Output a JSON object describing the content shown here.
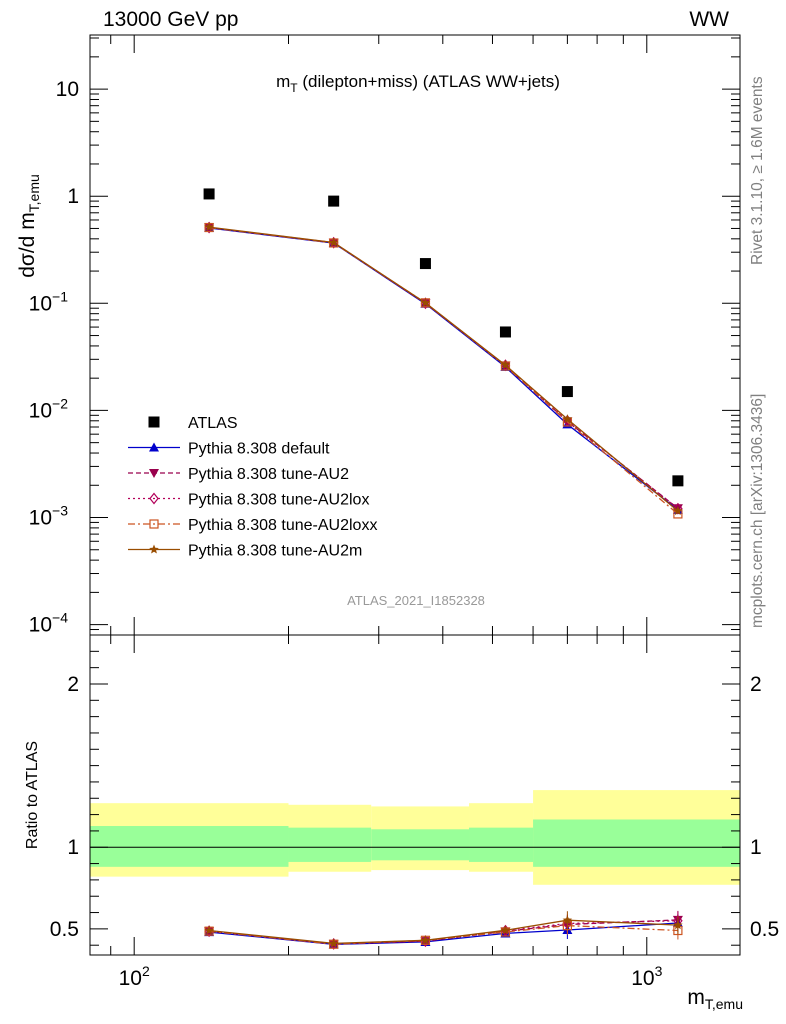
{
  "header": {
    "left": "13000 GeV pp",
    "right": "WW"
  },
  "side": {
    "rivet": "Rivet 3.1.10, ≥ 1.6M events",
    "mcplots": "mcplots.cern.ch [arXiv:1306.3436]"
  },
  "colors": {
    "atlas": "#000000",
    "default": "#0000cc",
    "au2": "#99004d",
    "au2lox": "#b3005a",
    "au2loxx": "#cc5522",
    "au2m": "#994d00",
    "band_inner": "#99ff99",
    "band_outer": "#ffff99"
  },
  "chart_data": [
    {
      "type": "line",
      "title": "m_T (dilepton+miss) (ATLAS WW+jets)",
      "title_main": "m",
      "title_sub": "T",
      "title_rest": " (dilepton+miss) (ATLAS WW+jets)",
      "ylabel_main": "dσ/d m",
      "ylabel_sub": "T,emu",
      "analysis_label": "ATLAS_2021_I1852328",
      "xscale": "log",
      "yscale": "log",
      "xlim": [
        82,
        1520
      ],
      "ylim": [
        8e-05,
        32
      ],
      "x_tick_labels": [
        {
          "base": "10",
          "exp": "2",
          "value": 100
        },
        {
          "base": "10",
          "exp": "3",
          "value": 1000
        }
      ],
      "y_tick_labels": [
        {
          "base": "10",
          "exp": "",
          "value": 10
        },
        {
          "base": "1",
          "exp": "",
          "value": 1
        },
        {
          "base": "10",
          "exp": "−1",
          "value": 0.1
        },
        {
          "base": "10",
          "exp": "−2",
          "value": 0.01
        },
        {
          "base": "10",
          "exp": "−3",
          "value": 0.001
        },
        {
          "base": "10",
          "exp": "−4",
          "value": 0.0001
        }
      ],
      "legend_position": "lower-left",
      "x": [
        140,
        245,
        370,
        530,
        700,
        1150
      ],
      "bin_edges": [
        82,
        200,
        290,
        450,
        600,
        1520
      ],
      "series": [
        {
          "name": "ATLAS",
          "key": "atlas",
          "marker": "square",
          "values": [
            1.05,
            0.9,
            0.235,
            0.054,
            0.015,
            0.0022
          ]
        },
        {
          "name": "Pythia 8.308 default",
          "key": "default",
          "marker": "triangle-up",
          "dash": "",
          "values": [
            0.505,
            0.365,
            0.099,
            0.0255,
            0.0074,
            0.00118
          ]
        },
        {
          "name": "Pythia 8.308 tune-AU2",
          "key": "au2",
          "marker": "triangle-down",
          "dash": "5,3",
          "values": [
            0.51,
            0.368,
            0.1,
            0.0262,
            0.0079,
            0.00122
          ]
        },
        {
          "name": "Pythia 8.308 tune-AU2lox",
          "key": "au2lox",
          "marker": "diamond-open",
          "dash": "2,3",
          "values": [
            0.51,
            0.368,
            0.1,
            0.0264,
            0.008,
            0.00121
          ]
        },
        {
          "name": "Pythia 8.308 tune-AU2loxx",
          "key": "au2loxx",
          "marker": "square-open",
          "dash": "7,3,2,3",
          "values": [
            0.51,
            0.366,
            0.101,
            0.026,
            0.0078,
            0.00108
          ]
        },
        {
          "name": "Pythia 8.308 tune-AU2m",
          "key": "au2m",
          "marker": "star",
          "dash": "",
          "values": [
            0.515,
            0.37,
            0.101,
            0.0265,
            0.0083,
            0.00115
          ]
        }
      ]
    },
    {
      "type": "line",
      "ylabel": "Ratio to ATLAS",
      "xlabel_main": "m",
      "xlabel_sub": "T,emu",
      "xscale": "log",
      "ylim": [
        0.34,
        2.3
      ],
      "y_tick_labels": [
        "0.5",
        "1",
        "2"
      ],
      "y_tick_values": [
        0.5,
        1,
        2
      ],
      "bands": [
        {
          "lo": 82,
          "hi": 200,
          "inner": [
            0.88,
            1.13
          ],
          "outer": [
            0.82,
            1.27
          ]
        },
        {
          "lo": 200,
          "hi": 290,
          "inner": [
            0.91,
            1.12
          ],
          "outer": [
            0.85,
            1.26
          ]
        },
        {
          "lo": 290,
          "hi": 450,
          "inner": [
            0.92,
            1.11
          ],
          "outer": [
            0.86,
            1.25
          ]
        },
        {
          "lo": 450,
          "hi": 600,
          "inner": [
            0.91,
            1.12
          ],
          "outer": [
            0.85,
            1.27
          ]
        },
        {
          "lo": 600,
          "hi": 1520,
          "inner": [
            0.88,
            1.17
          ],
          "outer": [
            0.77,
            1.35
          ]
        }
      ],
      "series": [
        {
          "key": "default",
          "values": [
            0.48,
            0.405,
            0.42,
            0.472,
            0.493,
            0.536
          ]
        },
        {
          "key": "au2",
          "values": [
            0.486,
            0.408,
            0.425,
            0.485,
            0.527,
            0.555
          ]
        },
        {
          "key": "au2lox",
          "values": [
            0.486,
            0.408,
            0.425,
            0.489,
            0.533,
            0.55
          ]
        },
        {
          "key": "au2loxx",
          "values": [
            0.486,
            0.406,
            0.43,
            0.481,
            0.52,
            0.49
          ]
        },
        {
          "key": "au2m",
          "values": [
            0.49,
            0.411,
            0.43,
            0.491,
            0.553,
            0.523
          ]
        }
      ]
    }
  ]
}
